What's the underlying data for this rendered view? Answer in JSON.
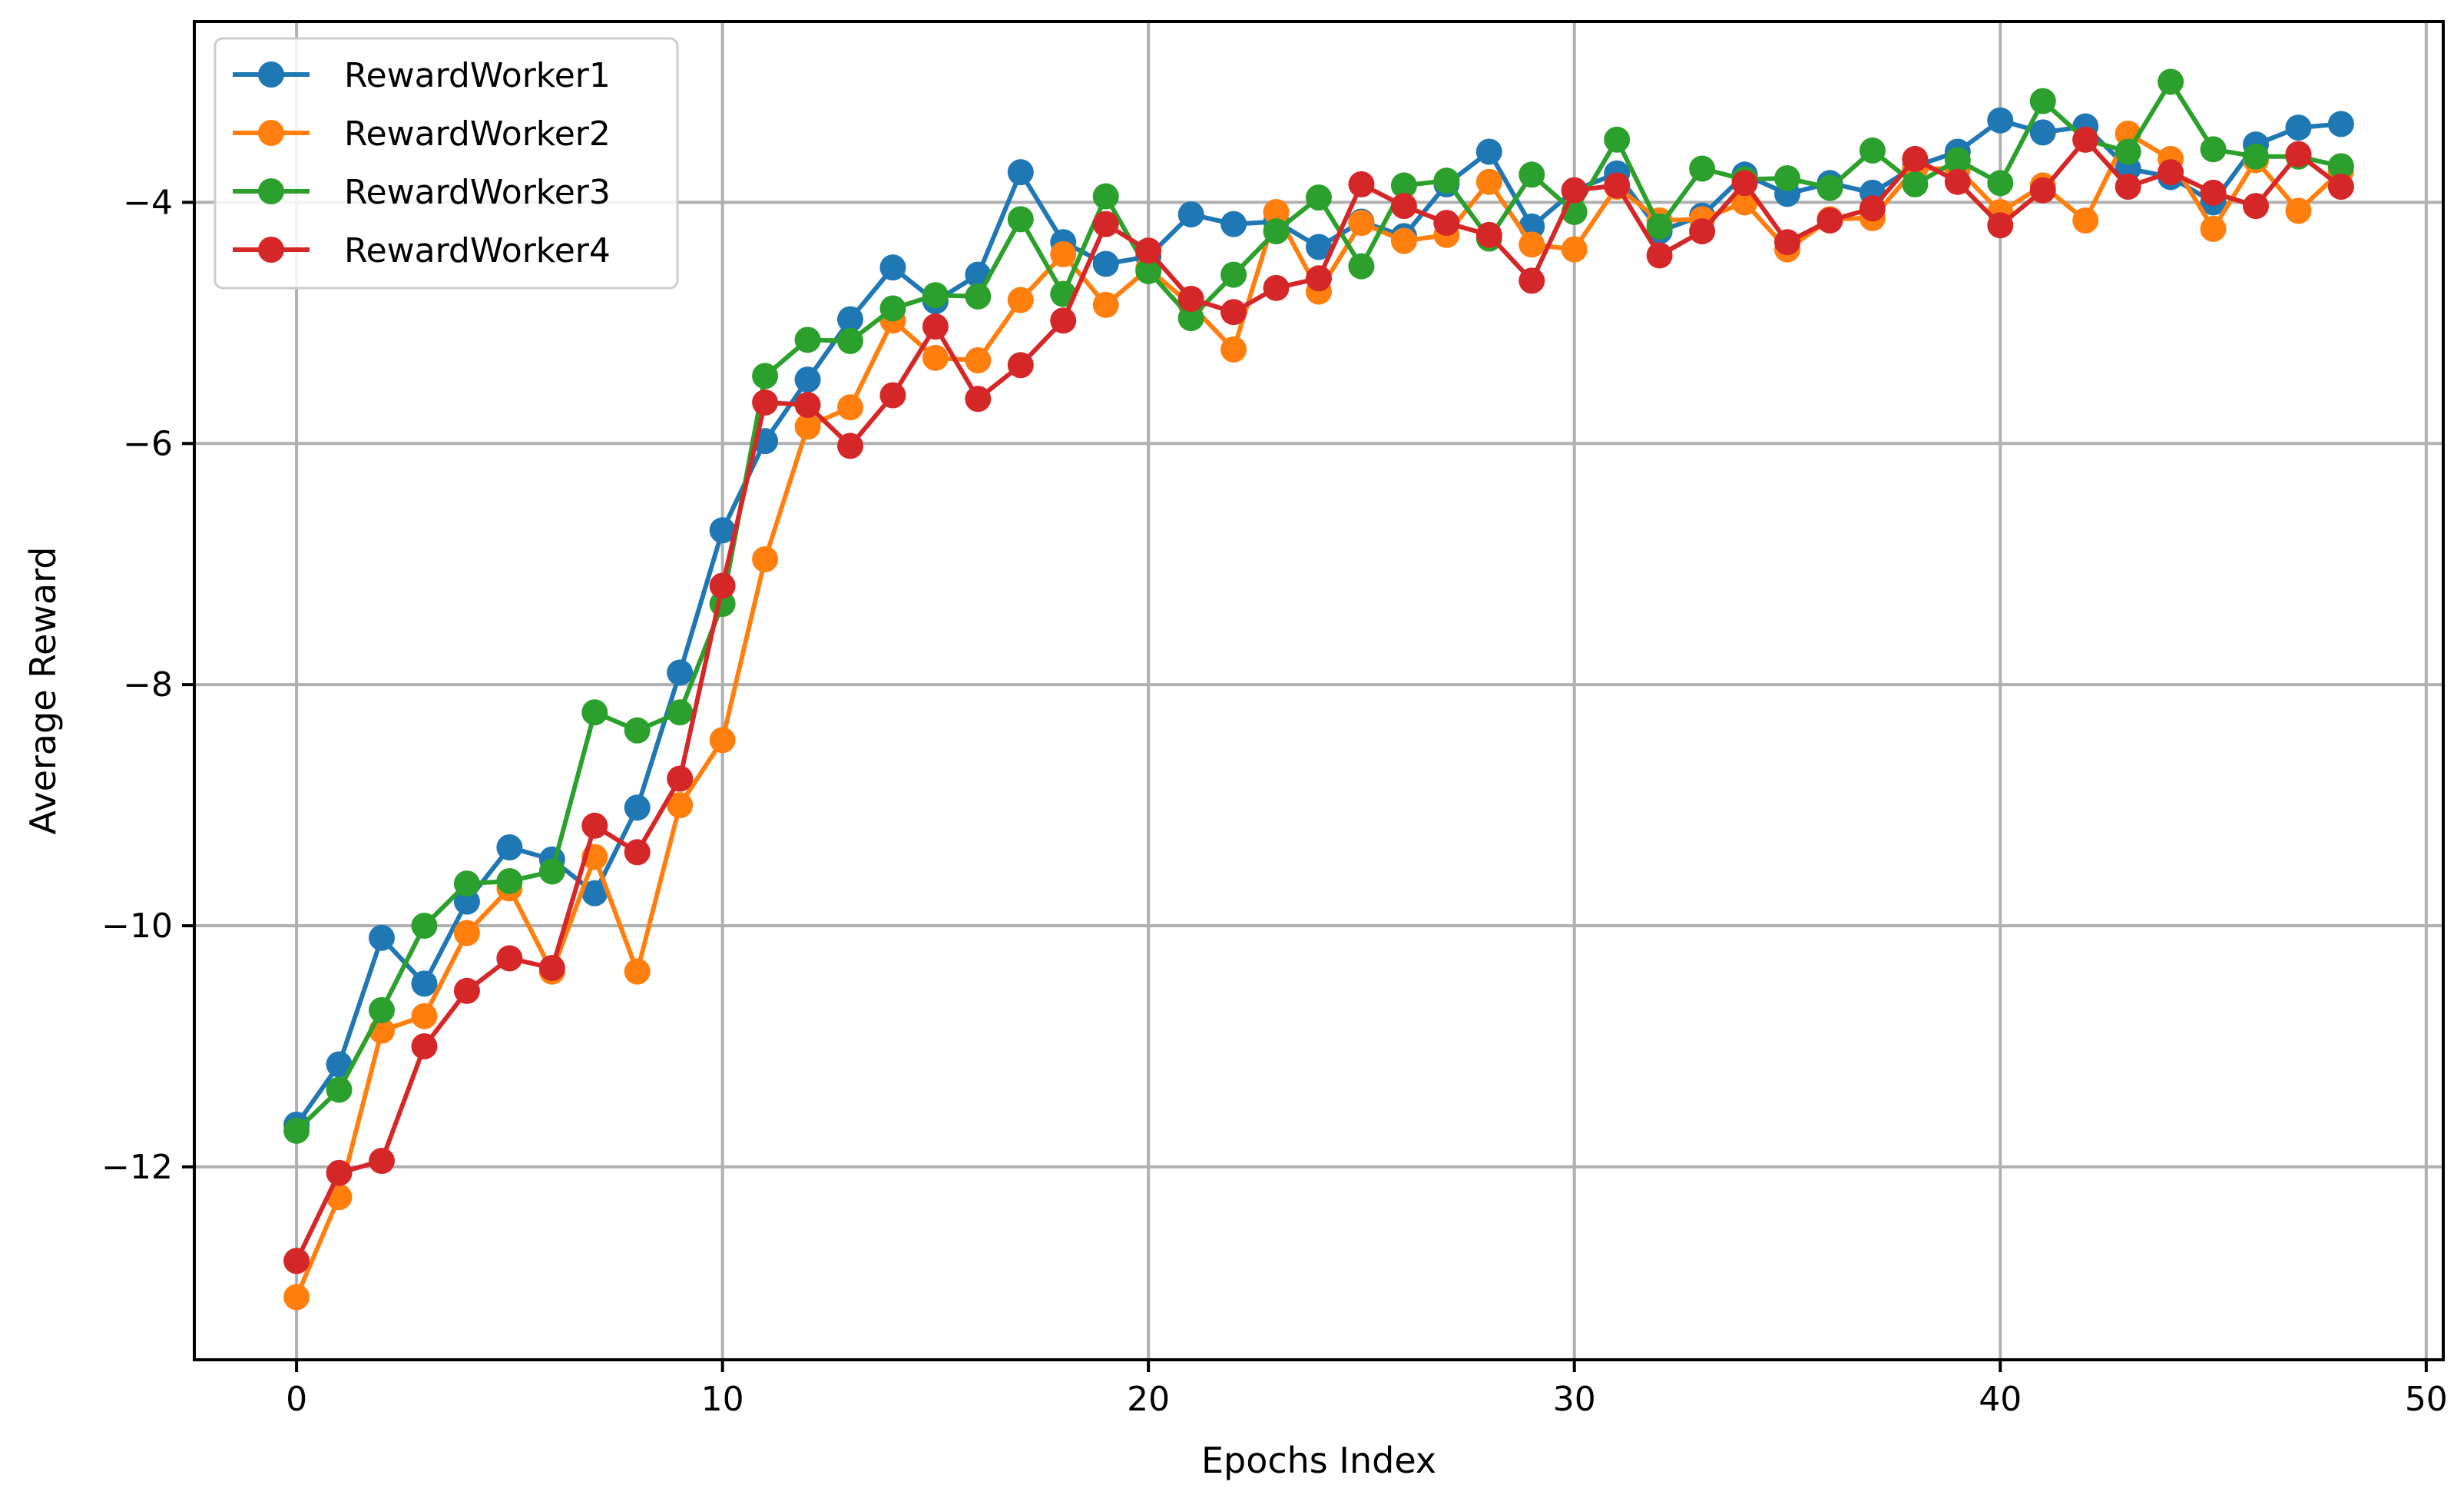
{
  "chart_data": {
    "type": "line",
    "title": "",
    "xlabel": "Epochs Index",
    "ylabel": "Average Reward",
    "xlim": [
      -2.4,
      50.4
    ],
    "ylim": [
      -13.6,
      -2.5
    ],
    "xticks": [
      0,
      10,
      20,
      30,
      40,
      50
    ],
    "yticks": [
      -12,
      -10,
      -8,
      -6,
      -4
    ],
    "xtick_labels": [
      "0",
      "10",
      "20",
      "30",
      "40",
      "50"
    ],
    "ytick_labels": [
      "−12",
      "−10",
      "−8",
      "−6",
      "−4"
    ],
    "grid": true,
    "legend_position": "upper left",
    "x": [
      0,
      1,
      2,
      3,
      4,
      5,
      6,
      7,
      8,
      9,
      10,
      11,
      12,
      13,
      14,
      15,
      16,
      17,
      18,
      19,
      20,
      21,
      22,
      23,
      24,
      25,
      26,
      27,
      28,
      29,
      30,
      31,
      32,
      33,
      34,
      35,
      36,
      37,
      38,
      39,
      40,
      41,
      42,
      43,
      44,
      45,
      46,
      47,
      48
    ],
    "series": [
      {
        "name": "RewardWorker1",
        "color": "#1f77b4",
        "values": [
          -11.65,
          -11.15,
          -10.1,
          -10.48,
          -9.8,
          -9.35,
          -9.45,
          -9.73,
          -9.02,
          -7.9,
          -6.72,
          -5.98,
          -5.47,
          -4.97,
          -4.54,
          -4.82,
          -4.6,
          -3.75,
          -4.33,
          -4.51,
          -4.45,
          -4.1,
          -4.18,
          -4.16,
          -4.37,
          -4.16,
          -4.28,
          -3.85,
          -3.58,
          -4.2,
          -3.9,
          -3.76,
          -4.24,
          -4.11,
          -3.77,
          -3.93,
          -3.84,
          -3.92,
          -3.7,
          -3.58,
          -3.32,
          -3.42,
          -3.37,
          -3.72,
          -3.79,
          -4.0,
          -3.52,
          -3.38,
          -3.35
        ]
      },
      {
        "name": "RewardWorker2",
        "color": "#ff7f0e",
        "values": [
          -13.08,
          -12.25,
          -10.87,
          -10.75,
          -10.06,
          -9.69,
          -10.38,
          -9.43,
          -10.38,
          -9.0,
          -8.46,
          -6.96,
          -5.86,
          -5.7,
          -4.98,
          -5.29,
          -5.31,
          -4.81,
          -4.43,
          -4.85,
          -4.55,
          -4.85,
          -5.22,
          -4.08,
          -4.74,
          -4.17,
          -4.32,
          -4.27,
          -3.83,
          -4.35,
          -4.39,
          -3.87,
          -4.15,
          -4.14,
          -4.0,
          -4.39,
          -4.14,
          -4.13,
          -3.72,
          -3.72,
          -4.08,
          -3.86,
          -4.15,
          -3.43,
          -3.64,
          -4.22,
          -3.65,
          -4.07,
          -3.74
        ]
      },
      {
        "name": "RewardWorker3",
        "color": "#2ca02c",
        "values": [
          -11.7,
          -11.36,
          -10.7,
          -10.0,
          -9.65,
          -9.63,
          -9.55,
          -8.23,
          -8.38,
          -8.23,
          -7.33,
          -5.44,
          -5.14,
          -5.15,
          -4.88,
          -4.77,
          -4.78,
          -4.14,
          -4.76,
          -3.95,
          -4.57,
          -4.96,
          -4.6,
          -4.24,
          -3.96,
          -4.53,
          -3.86,
          -3.82,
          -4.3,
          -3.77,
          -4.08,
          -3.48,
          -4.2,
          -3.72,
          -3.81,
          -3.8,
          -3.88,
          -3.57,
          -3.85,
          -3.65,
          -3.84,
          -3.16,
          -3.48,
          -3.58,
          -3.0,
          -3.56,
          -3.62,
          -3.62,
          -3.7
        ]
      },
      {
        "name": "RewardWorker4",
        "color": "#d62728",
        "values": [
          -12.78,
          -12.05,
          -11.95,
          -11.0,
          -10.54,
          -10.27,
          -10.35,
          -9.17,
          -9.39,
          -8.78,
          -7.18,
          -5.66,
          -5.68,
          -6.02,
          -5.6,
          -5.03,
          -5.63,
          -5.35,
          -4.98,
          -4.18,
          -4.4,
          -4.8,
          -4.91,
          -4.71,
          -4.63,
          -3.85,
          -4.03,
          -4.17,
          -4.27,
          -4.65,
          -3.9,
          -3.86,
          -4.44,
          -4.24,
          -3.84,
          -4.33,
          -4.15,
          -4.05,
          -3.64,
          -3.83,
          -4.19,
          -3.9,
          -3.48,
          -3.87,
          -3.75,
          -3.92,
          -4.03,
          -3.6,
          -3.87
        ]
      }
    ]
  }
}
